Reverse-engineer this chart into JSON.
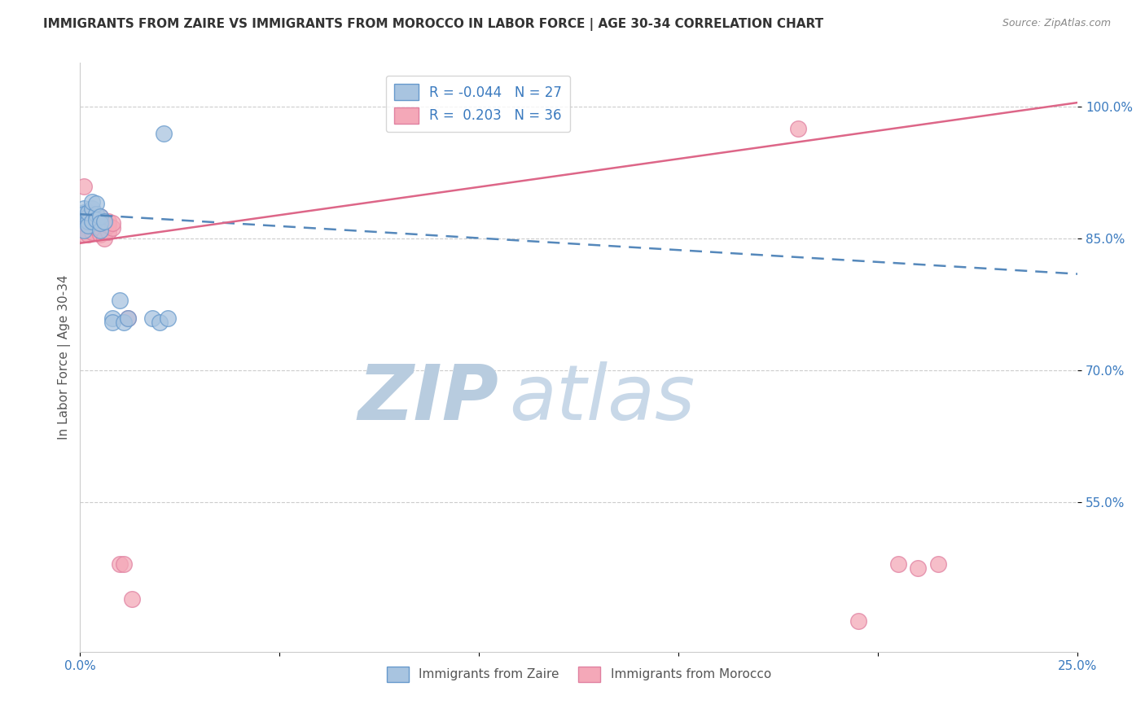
{
  "title": "IMMIGRANTS FROM ZAIRE VS IMMIGRANTS FROM MOROCCO IN LABOR FORCE | AGE 30-34 CORRELATION CHART",
  "source": "Source: ZipAtlas.com",
  "xlabel": "",
  "ylabel": "In Labor Force | Age 30-34",
  "xlim": [
    0.0,
    0.25
  ],
  "ylim": [
    0.38,
    1.05
  ],
  "xticks": [
    0.0,
    0.05,
    0.1,
    0.15,
    0.2,
    0.25
  ],
  "xticklabels": [
    "0.0%",
    "",
    "",
    "",
    "",
    "25.0%"
  ],
  "yticks": [
    0.55,
    0.7,
    0.85,
    1.0
  ],
  "yticklabels": [
    "55.0%",
    "70.0%",
    "85.0%",
    "100.0%"
  ],
  "zaire_R": -0.044,
  "zaire_N": 27,
  "morocco_R": 0.203,
  "morocco_N": 36,
  "zaire_color": "#a8c4e0",
  "morocco_color": "#f4a8b8",
  "zaire_edge_color": "#6699cc",
  "morocco_edge_color": "#e080a0",
  "zaire_line_color": "#5588bb",
  "morocco_line_color": "#dd6688",
  "watermark_zip": "ZIP",
  "watermark_atlas": "atlas",
  "watermark_color": "#dce8f5",
  "zaire_x": [
    0.001,
    0.001,
    0.001,
    0.001,
    0.002,
    0.002,
    0.002,
    0.002,
    0.003,
    0.003,
    0.003,
    0.004,
    0.004,
    0.004,
    0.005,
    0.005,
    0.005,
    0.006,
    0.008,
    0.008,
    0.01,
    0.011,
    0.012,
    0.018,
    0.02,
    0.021,
    0.022
  ],
  "zaire_y": [
    0.88,
    0.885,
    0.878,
    0.86,
    0.875,
    0.87,
    0.865,
    0.88,
    0.885,
    0.892,
    0.87,
    0.878,
    0.872,
    0.89,
    0.86,
    0.875,
    0.868,
    0.87,
    0.76,
    0.755,
    0.78,
    0.755,
    0.76,
    0.76,
    0.755,
    0.97,
    0.76
  ],
  "morocco_x": [
    0.001,
    0.001,
    0.001,
    0.001,
    0.001,
    0.002,
    0.002,
    0.002,
    0.002,
    0.002,
    0.003,
    0.003,
    0.003,
    0.003,
    0.004,
    0.004,
    0.004,
    0.005,
    0.005,
    0.005,
    0.006,
    0.006,
    0.007,
    0.007,
    0.007,
    0.008,
    0.008,
    0.01,
    0.011,
    0.012,
    0.013,
    0.18,
    0.195,
    0.205,
    0.21,
    0.215
  ],
  "morocco_y": [
    0.875,
    0.865,
    0.87,
    0.855,
    0.91,
    0.872,
    0.86,
    0.875,
    0.862,
    0.855,
    0.878,
    0.865,
    0.858,
    0.87,
    0.875,
    0.862,
    0.87,
    0.855,
    0.875,
    0.862,
    0.865,
    0.85,
    0.87,
    0.858,
    0.865,
    0.862,
    0.868,
    0.48,
    0.48,
    0.76,
    0.44,
    0.975,
    0.415,
    0.48,
    0.475,
    0.48
  ],
  "zaire_trendline_x": [
    0.0,
    0.25
  ],
  "zaire_trendline_y": [
    0.878,
    0.81
  ],
  "morocco_trendline_x": [
    0.0,
    0.25
  ],
  "morocco_trendline_y": [
    0.845,
    1.005
  ]
}
